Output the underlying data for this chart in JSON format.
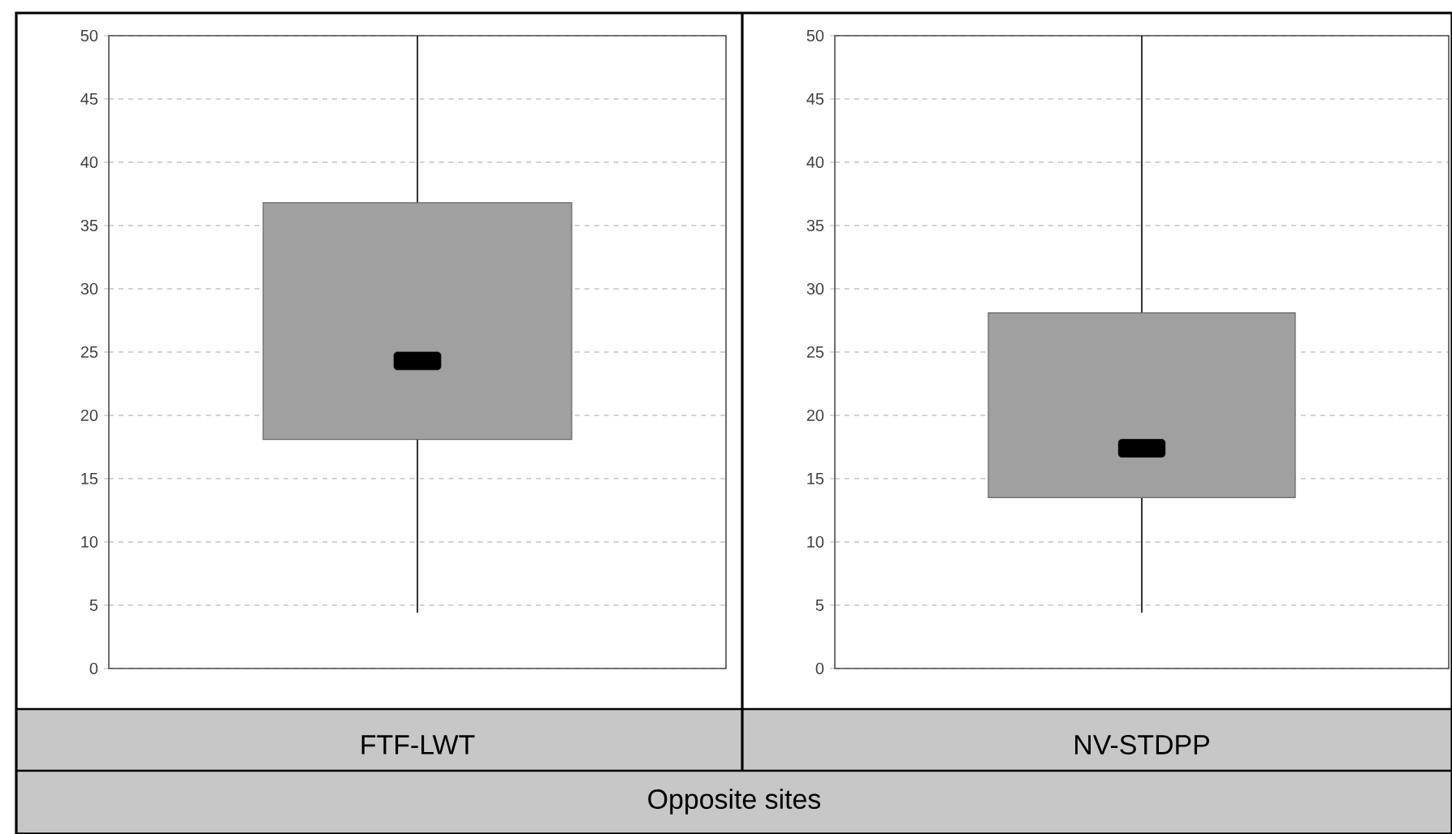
{
  "chart_data": [
    {
      "type": "box",
      "categories": [
        "FTF-LWT"
      ],
      "xlabel": "Opposite sites",
      "color": "#a0a0a0",
      "ylim": [
        0,
        50
      ],
      "yticks": [
        0,
        5,
        10,
        15,
        20,
        25,
        30,
        35,
        40,
        45,
        50
      ],
      "grid": "y",
      "boxes": [
        {
          "low": 4.4,
          "q1": 18.1,
          "median": 24.3,
          "q3": 36.8,
          "high": 50
        }
      ]
    },
    {
      "type": "box",
      "categories": [
        "NV-STDPP"
      ],
      "color": "#a0a0a0",
      "ylim": [
        0,
        50
      ],
      "yticks": [
        0,
        5,
        10,
        15,
        20,
        25,
        30,
        35,
        40,
        45,
        50
      ],
      "grid": "y",
      "boxes": [
        {
          "low": 4.4,
          "q1": 13.5,
          "median": 17.4,
          "q3": 28.1,
          "high": 50
        }
      ]
    }
  ]
}
